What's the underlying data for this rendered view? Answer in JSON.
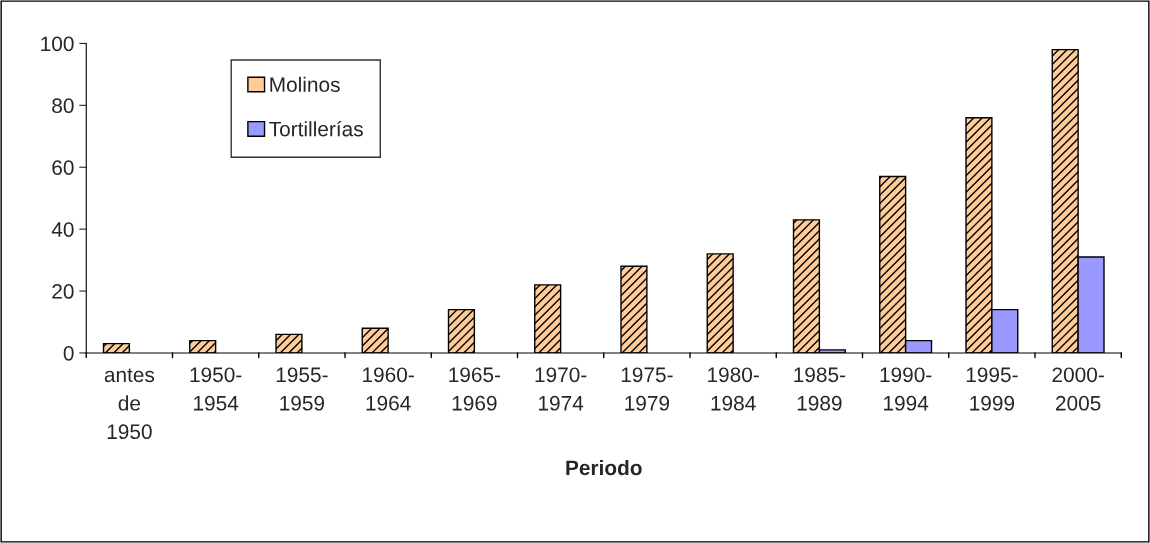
{
  "chart_data": {
    "type": "bar",
    "xlabel": "Periodo",
    "categories": [
      "antes\nde\n1950",
      "1950-\n1954",
      "1955-\n1959",
      "1960-\n1964",
      "1965-\n1969",
      "1970-\n1974",
      "1975-\n1979",
      "1980-\n1984",
      "1985-\n1989",
      "1990-\n1994",
      "1995-\n1999",
      "2000-\n2005"
    ],
    "series": [
      {
        "name": "Molinos",
        "color": "#ffcc99",
        "values": [
          3,
          4,
          6,
          8,
          14,
          22,
          28,
          32,
          43,
          57,
          76,
          98
        ]
      },
      {
        "name": "Tortillerías",
        "color": "#9999ff",
        "values": [
          null,
          null,
          null,
          null,
          null,
          null,
          null,
          null,
          1,
          4,
          14,
          31
        ]
      }
    ],
    "ylim": [
      0,
      100
    ],
    "yticks": [
      0,
      20,
      40,
      60,
      80,
      100
    ],
    "grid": false,
    "legend": "top left"
  }
}
